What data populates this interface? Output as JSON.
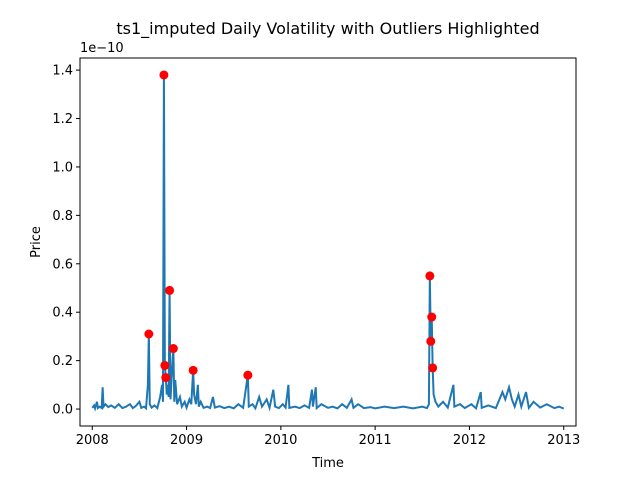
{
  "chart_data": {
    "type": "line",
    "title": "ts1_imputed Daily Volatility with Outliers Highlighted",
    "xlabel": "Time",
    "ylabel": "Price",
    "y_offset_label": "1e−10",
    "y_scale_exponent": -10,
    "xlim": [
      2007.87,
      2013.13
    ],
    "ylim": [
      -0.07,
      1.45
    ],
    "x_ticks": [
      2008,
      2009,
      2010,
      2011,
      2012,
      2013
    ],
    "x_tick_labels": [
      "2008",
      "2009",
      "2010",
      "2011",
      "2012",
      "2013"
    ],
    "y_ticks": [
      0.0,
      0.2,
      0.4,
      0.6,
      0.8,
      1.0,
      1.2,
      1.4
    ],
    "y_tick_labels": [
      "0.0",
      "0.2",
      "0.4",
      "0.6",
      "0.8",
      "1.0",
      "1.2",
      "1.4"
    ],
    "line_color": "#1f77b4",
    "outlier_color": "#ff0000",
    "series": [
      {
        "name": "ts1_imputed",
        "points": [
          [
            2008.0,
            0.005
          ],
          [
            2008.02,
            0.015
          ],
          [
            2008.03,
            0.003
          ],
          [
            2008.05,
            0.03
          ],
          [
            2008.06,
            0.004
          ],
          [
            2008.08,
            0.01
          ],
          [
            2008.1,
            0.004
          ],
          [
            2008.11,
            0.09
          ],
          [
            2008.12,
            0.01
          ],
          [
            2008.14,
            0.02
          ],
          [
            2008.17,
            0.008
          ],
          [
            2008.2,
            0.015
          ],
          [
            2008.24,
            0.005
          ],
          [
            2008.28,
            0.02
          ],
          [
            2008.32,
            0.004
          ],
          [
            2008.36,
            0.01
          ],
          [
            2008.4,
            0.02
          ],
          [
            2008.43,
            0.004
          ],
          [
            2008.46,
            0.012
          ],
          [
            2008.5,
            0.03
          ],
          [
            2008.52,
            0.005
          ],
          [
            2008.55,
            0.01
          ],
          [
            2008.57,
            0.003
          ],
          [
            2008.59,
            0.1
          ],
          [
            2008.6,
            0.31
          ],
          [
            2008.61,
            0.02
          ],
          [
            2008.63,
            0.006
          ],
          [
            2008.66,
            0.015
          ],
          [
            2008.69,
            0.004
          ],
          [
            2008.72,
            0.05
          ],
          [
            2008.74,
            0.1
          ],
          [
            2008.75,
            0.03
          ],
          [
            2008.76,
            1.38
          ],
          [
            2008.77,
            0.18
          ],
          [
            2008.78,
            0.13
          ],
          [
            2008.79,
            0.06
          ],
          [
            2008.8,
            0.1
          ],
          [
            2008.81,
            0.05
          ],
          [
            2008.82,
            0.49
          ],
          [
            2008.83,
            0.04
          ],
          [
            2008.84,
            0.12
          ],
          [
            2008.86,
            0.25
          ],
          [
            2008.87,
            0.03
          ],
          [
            2008.88,
            0.12
          ],
          [
            2008.9,
            0.02
          ],
          [
            2008.93,
            0.05
          ],
          [
            2008.95,
            0.01
          ],
          [
            2008.98,
            0.03
          ],
          [
            2009.0,
            0.006
          ],
          [
            2009.03,
            0.04
          ],
          [
            2009.05,
            0.02
          ],
          [
            2009.07,
            0.16
          ],
          [
            2009.08,
            0.06
          ],
          [
            2009.1,
            0.02
          ],
          [
            2009.12,
            0.1
          ],
          [
            2009.13,
            0.01
          ],
          [
            2009.15,
            0.03
          ],
          [
            2009.18,
            0.005
          ],
          [
            2009.22,
            0.01
          ],
          [
            2009.25,
            0.004
          ],
          [
            2009.28,
            0.05
          ],
          [
            2009.3,
            0.006
          ],
          [
            2009.35,
            0.012
          ],
          [
            2009.4,
            0.004
          ],
          [
            2009.45,
            0.01
          ],
          [
            2009.5,
            0.003
          ],
          [
            2009.55,
            0.02
          ],
          [
            2009.6,
            0.005
          ],
          [
            2009.65,
            0.14
          ],
          [
            2009.66,
            0.01
          ],
          [
            2009.7,
            0.02
          ],
          [
            2009.73,
            0.003
          ],
          [
            2009.77,
            0.05
          ],
          [
            2009.8,
            0.01
          ],
          [
            2009.85,
            0.04
          ],
          [
            2009.88,
            0.005
          ],
          [
            2009.92,
            0.08
          ],
          [
            2009.94,
            0.01
          ],
          [
            2009.98,
            0.004
          ],
          [
            2010.02,
            0.02
          ],
          [
            2010.05,
            0.006
          ],
          [
            2010.08,
            0.1
          ],
          [
            2010.09,
            0.005
          ],
          [
            2010.15,
            0.01
          ],
          [
            2010.2,
            0.004
          ],
          [
            2010.25,
            0.015
          ],
          [
            2010.3,
            0.005
          ],
          [
            2010.33,
            0.08
          ],
          [
            2010.34,
            0.01
          ],
          [
            2010.37,
            0.09
          ],
          [
            2010.38,
            0.004
          ],
          [
            2010.43,
            0.02
          ],
          [
            2010.5,
            0.005
          ],
          [
            2010.55,
            0.01
          ],
          [
            2010.6,
            0.003
          ],
          [
            2010.65,
            0.02
          ],
          [
            2010.7,
            0.005
          ],
          [
            2010.75,
            0.04
          ],
          [
            2010.77,
            0.005
          ],
          [
            2010.82,
            0.02
          ],
          [
            2010.88,
            0.004
          ],
          [
            2010.95,
            0.008
          ],
          [
            2011.0,
            0.003
          ],
          [
            2011.1,
            0.01
          ],
          [
            2011.2,
            0.004
          ],
          [
            2011.3,
            0.01
          ],
          [
            2011.4,
            0.003
          ],
          [
            2011.5,
            0.01
          ],
          [
            2011.55,
            0.004
          ],
          [
            2011.57,
            0.02
          ],
          [
            2011.58,
            0.55
          ],
          [
            2011.59,
            0.28
          ],
          [
            2011.6,
            0.38
          ],
          [
            2011.61,
            0.17
          ],
          [
            2011.62,
            0.06
          ],
          [
            2011.64,
            0.03
          ],
          [
            2011.67,
            0.01
          ],
          [
            2011.72,
            0.03
          ],
          [
            2011.77,
            0.006
          ],
          [
            2011.83,
            0.1
          ],
          [
            2011.84,
            0.01
          ],
          [
            2011.9,
            0.02
          ],
          [
            2011.95,
            0.004
          ],
          [
            2012.02,
            0.02
          ],
          [
            2012.07,
            0.003
          ],
          [
            2012.12,
            0.07
          ],
          [
            2012.13,
            0.005
          ],
          [
            2012.2,
            0.015
          ],
          [
            2012.28,
            0.004
          ],
          [
            2012.35,
            0.07
          ],
          [
            2012.38,
            0.04
          ],
          [
            2012.42,
            0.09
          ],
          [
            2012.45,
            0.04
          ],
          [
            2012.48,
            0.01
          ],
          [
            2012.52,
            0.06
          ],
          [
            2012.55,
            0.01
          ],
          [
            2012.6,
            0.07
          ],
          [
            2012.63,
            0.005
          ],
          [
            2012.68,
            0.03
          ],
          [
            2012.75,
            0.006
          ],
          [
            2012.82,
            0.02
          ],
          [
            2012.9,
            0.004
          ],
          [
            2012.95,
            0.01
          ],
          [
            2013.0,
            0.002
          ]
        ]
      }
    ],
    "outliers": [
      [
        2008.6,
        0.31
      ],
      [
        2008.76,
        1.38
      ],
      [
        2008.77,
        0.18
      ],
      [
        2008.78,
        0.13
      ],
      [
        2008.82,
        0.49
      ],
      [
        2008.86,
        0.25
      ],
      [
        2009.07,
        0.16
      ],
      [
        2009.65,
        0.14
      ],
      [
        2011.58,
        0.55
      ],
      [
        2011.59,
        0.28
      ],
      [
        2011.6,
        0.38
      ],
      [
        2011.61,
        0.17
      ]
    ]
  }
}
